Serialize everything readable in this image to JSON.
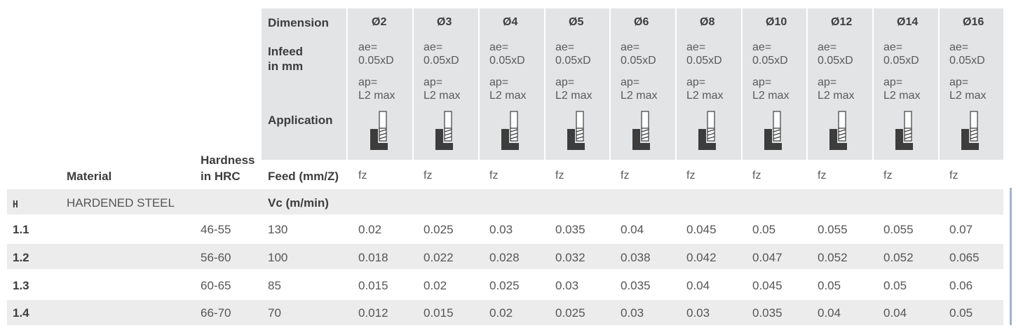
{
  "header": {
    "dimension_label": "Dimension",
    "infeed_label_1": "Infeed",
    "infeed_label_2": "in mm",
    "application_label": "Application",
    "material_label": "Material",
    "hardness_label_1": "Hardness",
    "hardness_label_2": "in HRC",
    "feed_label": "Feed (mm/Z)",
    "vc_label": "Vc (m/min)"
  },
  "columns": [
    {
      "dim": "Ø2",
      "ae1": "ae=",
      "ae2": "0.05xD",
      "ap1": "ap=",
      "ap2": "L2 max",
      "feed": "fz"
    },
    {
      "dim": "Ø3",
      "ae1": "ae=",
      "ae2": "0.05xD",
      "ap1": "ap=",
      "ap2": "L2 max",
      "feed": "fz"
    },
    {
      "dim": "Ø4",
      "ae1": "ae=",
      "ae2": "0.05xD",
      "ap1": "ap=",
      "ap2": "L2 max",
      "feed": "fz"
    },
    {
      "dim": "Ø5",
      "ae1": "ae=",
      "ae2": "0.05xD",
      "ap1": "ap=",
      "ap2": "L2 max",
      "feed": "fz"
    },
    {
      "dim": "Ø6",
      "ae1": "ae=",
      "ae2": "0.05xD",
      "ap1": "ap=",
      "ap2": "L2 max",
      "feed": "fz"
    },
    {
      "dim": "Ø8",
      "ae1": "ae=",
      "ae2": "0.05xD",
      "ap1": "ap=",
      "ap2": "L2 max",
      "feed": "fz"
    },
    {
      "dim": "Ø10",
      "ae1": "ae=",
      "ae2": "0.05xD",
      "ap1": "ap=",
      "ap2": "L2 max",
      "feed": "fz"
    },
    {
      "dim": "Ø12",
      "ae1": "ae=",
      "ae2": "0.05xD",
      "ap1": "ap=",
      "ap2": "L2 max",
      "feed": "fz"
    },
    {
      "dim": "Ø14",
      "ae1": "ae=",
      "ae2": "0.05xD",
      "ap1": "ap=",
      "ap2": "L2 max",
      "feed": "fz"
    },
    {
      "dim": "Ø16",
      "ae1": "ae=",
      "ae2": "0.05xD",
      "ap1": "ap=",
      "ap2": "L2 max",
      "feed": "fz"
    }
  ],
  "group": {
    "code": "H",
    "name": "HARDENED STEEL"
  },
  "rows": [
    {
      "code": "1.1",
      "hardness": "46-55",
      "vc": "130",
      "values": [
        "0.02",
        "0.025",
        "0.03",
        "0.035",
        "0.04",
        "0.045",
        "0.05",
        "0.055",
        "0.055",
        "0.07"
      ]
    },
    {
      "code": "1.2",
      "hardness": "56-60",
      "vc": "100",
      "values": [
        "0.018",
        "0.022",
        "0.028",
        "0.032",
        "0.038",
        "0.042",
        "0.047",
        "0.052",
        "0.052",
        "0.065"
      ]
    },
    {
      "code": "1.3",
      "hardness": "60-65",
      "vc": "85",
      "values": [
        "0.015",
        "0.02",
        "0.025",
        "0.03",
        "0.035",
        "0.04",
        "0.045",
        "0.05",
        "0.05",
        "0.06"
      ]
    },
    {
      "code": "1.4",
      "hardness": "66-70",
      "vc": "70",
      "values": [
        "0.012",
        "0.015",
        "0.02",
        "0.025",
        "0.03",
        "0.03",
        "0.035",
        "0.04",
        "0.04",
        "0.05"
      ]
    }
  ],
  "icons": {
    "application": "end-mill-corner-milling-icon"
  },
  "colors": {
    "header_bg": "#e3e4e5",
    "row_alt_bg": "#ececec",
    "icon_dark": "#3d3d3d"
  }
}
